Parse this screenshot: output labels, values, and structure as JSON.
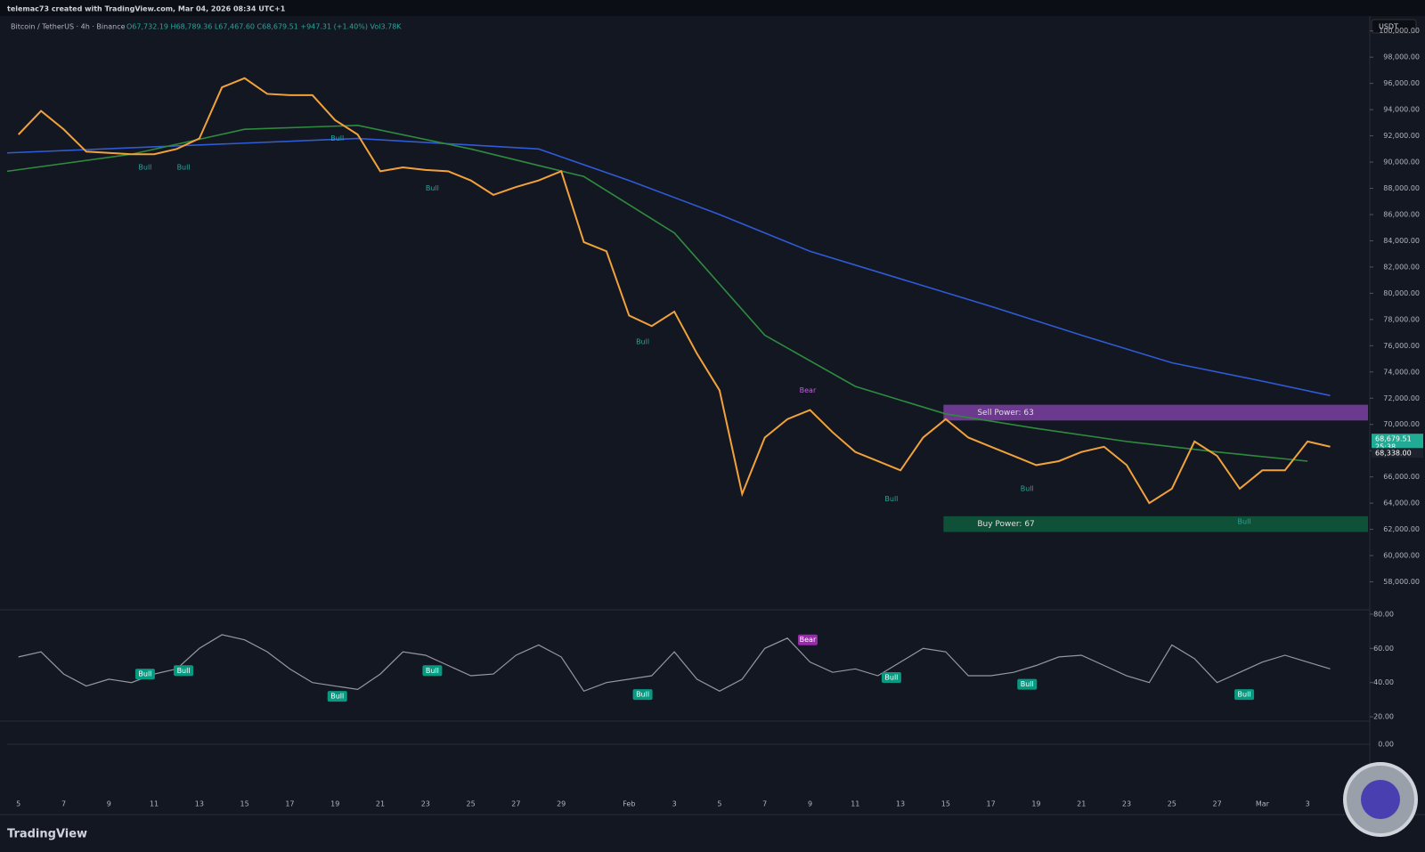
{
  "header": {
    "attribution": "telemac73 created with TradingView.com, Mar 04, 2026 08:34 UTC+1",
    "symbol": "Bitcoin / TetherUS · 4h · Binance",
    "ohlc": "O67,732.19 H68,789.36 L67,467.60 C68,679.51 +947.31 (+1.40%) Vol3.78K",
    "currency": "USDT"
  },
  "chart_data": {
    "type": "line",
    "xlim": [
      4.5,
      64.75
    ],
    "xticks": [
      {
        "value": 5,
        "label": "5"
      },
      {
        "value": 7,
        "label": "7"
      },
      {
        "value": 9,
        "label": "9"
      },
      {
        "value": 11,
        "label": "11"
      },
      {
        "value": 13,
        "label": "13"
      },
      {
        "value": 15,
        "label": "15"
      },
      {
        "value": 17,
        "label": "17"
      },
      {
        "value": 19,
        "label": "19"
      },
      {
        "value": 21,
        "label": "21"
      },
      {
        "value": 23,
        "label": "23"
      },
      {
        "value": 25,
        "label": "25"
      },
      {
        "value": 27,
        "label": "27"
      },
      {
        "value": 29,
        "label": "29"
      },
      {
        "value": 32,
        "label": "Feb"
      },
      {
        "value": 34,
        "label": "3"
      },
      {
        "value": 36,
        "label": "5"
      },
      {
        "value": 38,
        "label": "7"
      },
      {
        "value": 40,
        "label": "9"
      },
      {
        "value": 42,
        "label": "11"
      },
      {
        "value": 44,
        "label": "13"
      },
      {
        "value": 46,
        "label": "15"
      },
      {
        "value": 48,
        "label": "17"
      },
      {
        "value": 50,
        "label": "19"
      },
      {
        "value": 52,
        "label": "21"
      },
      {
        "value": 54,
        "label": "23"
      },
      {
        "value": 56,
        "label": "25"
      },
      {
        "value": 58,
        "label": "27"
      },
      {
        "value": 60,
        "label": "Mar"
      },
      {
        "value": 62,
        "label": "3"
      }
    ],
    "ylim": [
      56000,
      101000
    ],
    "yticks": [
      {
        "value": 58000,
        "label": "58,000.00"
      },
      {
        "value": 60000,
        "label": "60,000.00"
      },
      {
        "value": 62000,
        "label": "62,000.00"
      },
      {
        "value": 64000,
        "label": "64,000.00"
      },
      {
        "value": 66000,
        "label": "66,000.00"
      },
      {
        "value": 68000,
        "label": "68,000.00"
      },
      {
        "value": 70000,
        "label": "70,000.00"
      },
      {
        "value": 72000,
        "label": "72,000.00"
      },
      {
        "value": 74000,
        "label": "74,000.00"
      },
      {
        "value": 76000,
        "label": "76,000.00"
      },
      {
        "value": 78000,
        "label": "78,000.00"
      },
      {
        "value": 80000,
        "label": "80,000.00"
      },
      {
        "value": 82000,
        "label": "82,000.00"
      },
      {
        "value": 84000,
        "label": "84,000.00"
      },
      {
        "value": 86000,
        "label": "86,000.00"
      },
      {
        "value": 88000,
        "label": "88,000.00"
      },
      {
        "value": 90000,
        "label": "90,000.00"
      },
      {
        "value": 92000,
        "label": "92,000.00"
      },
      {
        "value": 94000,
        "label": "94,000.00"
      },
      {
        "value": 96000,
        "label": "96,000.00"
      },
      {
        "value": 98000,
        "label": "98,000.00"
      },
      {
        "value": 100000,
        "label": "100,000.00"
      }
    ],
    "series": [
      {
        "color": "#2f5bd6",
        "x": [
          4.5,
          20,
          28,
          32,
          36,
          40,
          44,
          48,
          52,
          56,
          60,
          63
        ],
        "values": [
          90700,
          91800,
          91000,
          88600,
          86000,
          83200,
          81100,
          79000,
          76800,
          74700,
          73300,
          72200
        ]
      },
      {
        "color": "#2e8b3e",
        "x": [
          4.5,
          10,
          15,
          20,
          25,
          30,
          34,
          38,
          42,
          46,
          50,
          54,
          58,
          62
        ],
        "values": [
          89300,
          90600,
          92500,
          92800,
          91000,
          88900,
          84600,
          76800,
          72900,
          70800,
          69700,
          68700,
          67900,
          67200
        ]
      },
      {
        "color": "#f2a23a",
        "x": [
          5,
          6,
          7,
          8,
          9,
          10,
          11,
          12,
          13,
          14,
          15,
          16,
          17,
          18,
          19,
          20,
          21,
          22,
          23,
          24,
          25,
          26,
          27,
          28,
          29,
          30,
          31,
          32,
          33,
          34,
          35,
          36,
          37,
          38,
          39,
          40,
          41,
          42,
          43,
          44,
          45,
          46,
          47,
          48,
          49,
          50,
          51,
          52,
          53,
          54,
          55,
          56,
          57,
          58,
          59,
          60,
          61,
          62,
          63
        ],
        "values": [
          92100,
          93900,
          92500,
          90800,
          90700,
          90600,
          90600,
          91000,
          91800,
          95700,
          96400,
          95200,
          95100,
          95100,
          93200,
          92100,
          89300,
          89600,
          89400,
          89300,
          88600,
          87500,
          88100,
          88600,
          89300,
          83900,
          83200,
          78300,
          77500,
          78600,
          75400,
          72600,
          64700,
          69000,
          70400,
          71100,
          69400,
          67900,
          67200,
          66500,
          69000,
          70400,
          69000,
          68300,
          67600,
          66900,
          67200,
          67900,
          68300,
          66900,
          64000,
          65100,
          68700,
          67600,
          65100,
          66500,
          66500,
          68700,
          68300
        ]
      }
    ],
    "zones": [
      {
        "label": "Sell Power: 63",
        "from": 45.9,
        "low": 70300,
        "high": 71500,
        "color": "#7b3fa0"
      },
      {
        "label": "Buy Power: 67",
        "from": 45.9,
        "low": 61800,
        "high": 63000,
        "color": "#0e5a3c"
      }
    ],
    "annotations": [
      {
        "text": "Bull",
        "x": 10.6,
        "y": 89600
      },
      {
        "text": "Bull",
        "x": 12.3,
        "y": 89600
      },
      {
        "text": "Bull",
        "x": 19.1,
        "y": 91800
      },
      {
        "text": "Bull",
        "x": 23.3,
        "y": 88000
      },
      {
        "text": "Bull",
        "x": 32.6,
        "y": 76300
      },
      {
        "text": "Bull",
        "x": 43.6,
        "y": 64300
      },
      {
        "text": "Bull",
        "x": 49.6,
        "y": 65100
      },
      {
        "text": "Bull",
        "x": 59.2,
        "y": 62600
      },
      {
        "text": "Bear",
        "x": 39.9,
        "y": 72600
      }
    ],
    "last_price": {
      "value": 68679.51,
      "label": "68,679.51"
    },
    "countdown": "25:38",
    "ref_price": {
      "value": 68338,
      "label": "68,338.00"
    },
    "rsi": {
      "ylim": [
        18.5,
        81.5
      ],
      "yticks": [
        {
          "value": 80,
          "label": "80.00"
        },
        {
          "value": 60,
          "label": "60.00"
        },
        {
          "value": 40,
          "label": "40.00"
        },
        {
          "value": 20,
          "label": "20.00"
        }
      ],
      "x": [
        5,
        6,
        7,
        8,
        9,
        10,
        11,
        12,
        13,
        14,
        15,
        16,
        17,
        18,
        19,
        20,
        21,
        22,
        23,
        24,
        25,
        26,
        27,
        28,
        29,
        30,
        31,
        32,
        33,
        34,
        35,
        36,
        37,
        38,
        39,
        40,
        41,
        42,
        43,
        44,
        45,
        46,
        47,
        48,
        49,
        50,
        51,
        52,
        53,
        54,
        55,
        56,
        57,
        58,
        59,
        60,
        61,
        62,
        63
      ],
      "values": [
        55,
        58,
        45,
        38,
        42,
        40,
        45,
        48,
        60,
        68,
        65,
        58,
        48,
        40,
        38,
        36,
        45,
        58,
        56,
        50,
        44,
        45,
        56,
        62,
        55,
        35,
        40,
        42,
        44,
        58,
        42,
        35,
        42,
        60,
        66,
        52,
        46,
        48,
        44,
        52,
        60,
        58,
        44,
        44,
        46,
        50,
        55,
        56,
        50,
        44,
        40,
        62,
        54,
        40,
        46,
        52,
        56,
        52,
        48
      ],
      "annotations": [
        {
          "text": "Bull",
          "x": 10.6,
          "y": 45
        },
        {
          "text": "Bull",
          "x": 12.3,
          "y": 47
        },
        {
          "text": "Bull",
          "x": 19.1,
          "y": 32
        },
        {
          "text": "Bull",
          "x": 23.3,
          "y": 47
        },
        {
          "text": "Bull",
          "x": 32.6,
          "y": 33
        },
        {
          "text": "Bull",
          "x": 43.6,
          "y": 43
        },
        {
          "text": "Bull",
          "x": 49.6,
          "y": 39
        },
        {
          "text": "Bull",
          "x": 59.2,
          "y": 33
        },
        {
          "text": "Bear",
          "x": 39.9,
          "y": 65
        }
      ]
    },
    "macd": {
      "yticks": [
        {
          "value": 0,
          "label": "0.00"
        }
      ]
    }
  },
  "footer": {
    "logo": "TradingView"
  }
}
